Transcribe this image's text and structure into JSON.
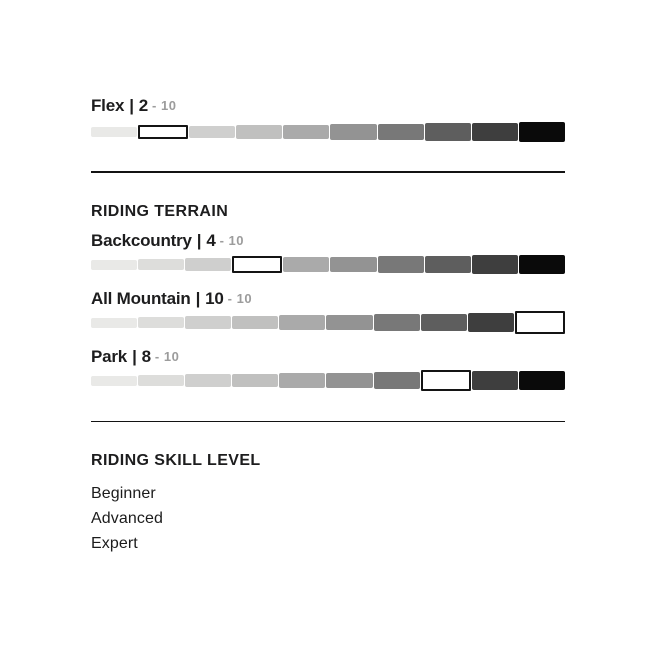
{
  "scale": {
    "steps": 10,
    "colors": [
      "#e9e9e7",
      "#dddddb",
      "#cfcfce",
      "#c0c0bf",
      "#aaaaaa",
      "#939393",
      "#787878",
      "#5e5e5e",
      "#3e3e3e",
      "#0a0a0a"
    ],
    "selected_fill": "#ffffff",
    "selected_border": "#141414"
  },
  "flex": {
    "label": "Flex",
    "separator": "|",
    "value": 2,
    "max_display": "- 10"
  },
  "riding_terrain": {
    "heading": "RIDING TERRAIN",
    "items": [
      {
        "label": "Backcountry",
        "separator": "|",
        "value": 4,
        "max_display": "- 10"
      },
      {
        "label": "All Mountain",
        "separator": "|",
        "value": 10,
        "max_display": "- 10"
      },
      {
        "label": "Park",
        "separator": "|",
        "value": 8,
        "max_display": "- 10"
      }
    ]
  },
  "riding_skill": {
    "heading": "RIDING SKILL LEVEL",
    "items": [
      "Beginner",
      "Advanced",
      "Expert"
    ]
  },
  "colors": {
    "text": "#1d1d1e",
    "muted": "#9c9c9c",
    "divider": "#131313",
    "background": "#ffffff"
  }
}
